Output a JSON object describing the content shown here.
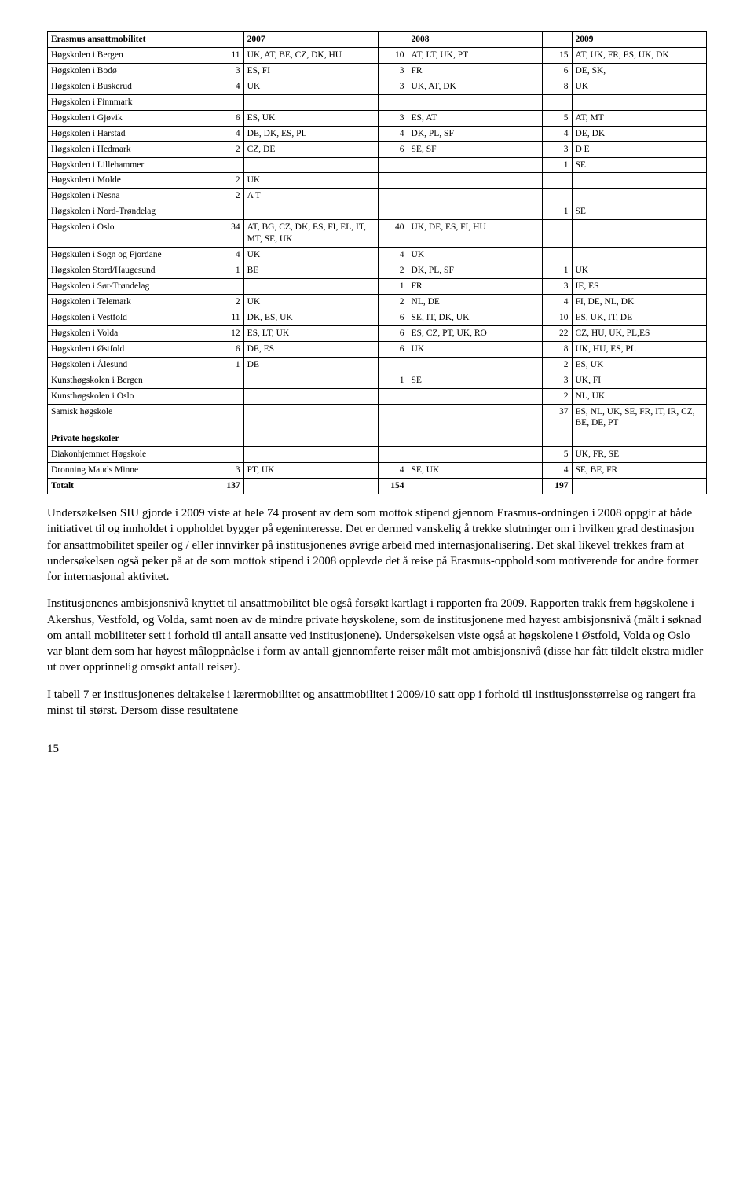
{
  "table": {
    "headers": [
      "Erasmus ansattmobilitet",
      "",
      "2007",
      "",
      "2008",
      "",
      "2009"
    ],
    "rows": [
      [
        "Høgskolen i Bergen",
        "11",
        "UK, AT, BE, CZ, DK, HU",
        "10",
        "AT, LT, UK, PT",
        "15",
        "AT, UK, FR, ES, UK, DK"
      ],
      [
        "Høgskolen i Bodø",
        "3",
        "ES, FI",
        "3",
        "FR",
        "6",
        "DE, SK,"
      ],
      [
        "Høgskolen i Buskerud",
        "4",
        "UK",
        "3",
        "UK, AT, DK",
        "8",
        "UK"
      ],
      [
        "Høgskolen i Finnmark",
        "",
        "",
        "",
        "",
        "",
        ""
      ],
      [
        "Høgskolen i Gjøvik",
        "6",
        "ES, UK",
        "3",
        "ES, AT",
        "5",
        "AT, MT"
      ],
      [
        "Høgskolen i Harstad",
        "4",
        "DE, DK, ES, PL",
        "4",
        "DK, PL, SF",
        "4",
        "DE, DK"
      ],
      [
        "Høgskolen i Hedmark",
        "2",
        "CZ, DE",
        "6",
        "SE, SF",
        "3",
        "D E"
      ],
      [
        "Høgskolen i Lillehammer",
        "",
        "",
        "",
        "",
        "1",
        "SE"
      ],
      [
        "Høgskolen i Molde",
        "2",
        "UK",
        "",
        "",
        "",
        ""
      ],
      [
        "Høgskolen i Nesna",
        "2",
        "A T",
        "",
        "",
        "",
        ""
      ],
      [
        "Høgskolen i Nord-Trøndelag",
        "",
        "",
        "",
        "",
        "1",
        "SE"
      ],
      [
        "Høgskolen i Oslo",
        "34",
        "AT, BG, CZ, DK, ES, FI, EL, IT, MT, SE, UK",
        "40",
        "UK, DE, ES, FI, HU",
        "",
        ""
      ],
      [
        "Høgskulen i Sogn og Fjordane",
        "4",
        "UK",
        "4",
        "UK",
        "",
        ""
      ],
      [
        "Høgskolen Stord/Haugesund",
        "1",
        "BE",
        "2",
        "DK, PL, SF",
        "1",
        "UK"
      ],
      [
        "Høgskolen i Sør-Trøndelag",
        "",
        "",
        "1",
        "FR",
        "3",
        "IE, ES"
      ],
      [
        "Høgskolen i Telemark",
        "2",
        "UK",
        "2",
        "NL, DE",
        "4",
        "FI, DE, NL, DK"
      ],
      [
        "Høgskolen i Vestfold",
        "11",
        "DK, ES, UK",
        "6",
        "SE, IT, DK, UK",
        "10",
        "ES, UK, IT, DE"
      ],
      [
        "Høgskolen i Volda",
        "12",
        "ES, LT, UK",
        "6",
        "ES, CZ, PT, UK, RO",
        "22",
        "CZ, HU, UK, PL,ES"
      ],
      [
        "Høgskolen i Østfold",
        "6",
        "DE, ES",
        "6",
        "UK",
        "8",
        "UK, HU, ES, PL"
      ],
      [
        "Høgskolen i Ålesund",
        "1",
        "DE",
        "",
        "",
        "2",
        "ES, UK"
      ],
      [
        "Kunsthøgskolen i Bergen",
        "",
        "",
        "1",
        "SE",
        "3",
        "UK, FI"
      ],
      [
        "Kunsthøgskolen i Oslo",
        "",
        "",
        "",
        "",
        "2",
        "NL, UK"
      ],
      [
        "Samisk høgskole",
        "",
        "",
        "",
        "",
        "37",
        "ES, NL, UK, SE, FR, IT, IR, CZ, BE, DE, PT"
      ],
      [
        "Private høgskoler",
        "",
        "",
        "",
        "",
        "",
        ""
      ],
      [
        "Diakonhjemmet Høgskole",
        "",
        "",
        "",
        "",
        "5",
        "UK, FR, SE"
      ],
      [
        "Dronning Mauds Minne",
        "3",
        "PT, UK",
        "4",
        "SE, UK",
        "4",
        "SE, BE, FR"
      ],
      [
        "Totalt",
        "137",
        "",
        "154",
        "",
        "197",
        ""
      ]
    ],
    "bold_rows": [
      23,
      26
    ]
  },
  "paragraphs": [
    "Undersøkelsen SIU gjorde i 2009 viste at hele 74 prosent av dem som mottok stipend gjennom Erasmus-ordningen i 2008 oppgir at både initiativet til og innholdet i oppholdet bygger på egeninteresse. Det er dermed vanskelig å trekke slutninger om i hvilken grad destinasjon for ansattmobilitet speiler og / eller innvirker på institusjonenes øvrige arbeid med internasjonalisering. Det skal likevel trekkes fram at undersøkelsen også peker på at de som mottok stipend i 2008 opplevde det å reise på Erasmus-opphold som motiverende for andre former for internasjonal aktivitet.",
    "Institusjonenes ambisjonsnivå knyttet til ansattmobilitet ble også forsøkt kartlagt i rapporten fra 2009. Rapporten trakk frem høgskolene i Akershus, Vestfold, og Volda, samt noen av de mindre private høyskolene, som de institusjonene med høyest ambisjonsnivå (målt i søknad om antall mobiliteter sett i forhold til antall ansatte ved institusjonene). Undersøkelsen viste også at høgskolene i Østfold, Volda og Oslo var blant dem som har høyest måloppnåelse i form av antall gjennomførte reiser målt mot ambisjonsnivå (disse har fått tildelt ekstra midler ut over opprinnelig omsøkt antall reiser).",
    "I tabell 7 er institusjonenes deltakelse i lærermobilitet og ansattmobilitet i 2009/10 satt opp i forhold til institusjonsstørrelse og rangert fra minst til størst. Dersom disse resultatene"
  ],
  "page_number": "15"
}
